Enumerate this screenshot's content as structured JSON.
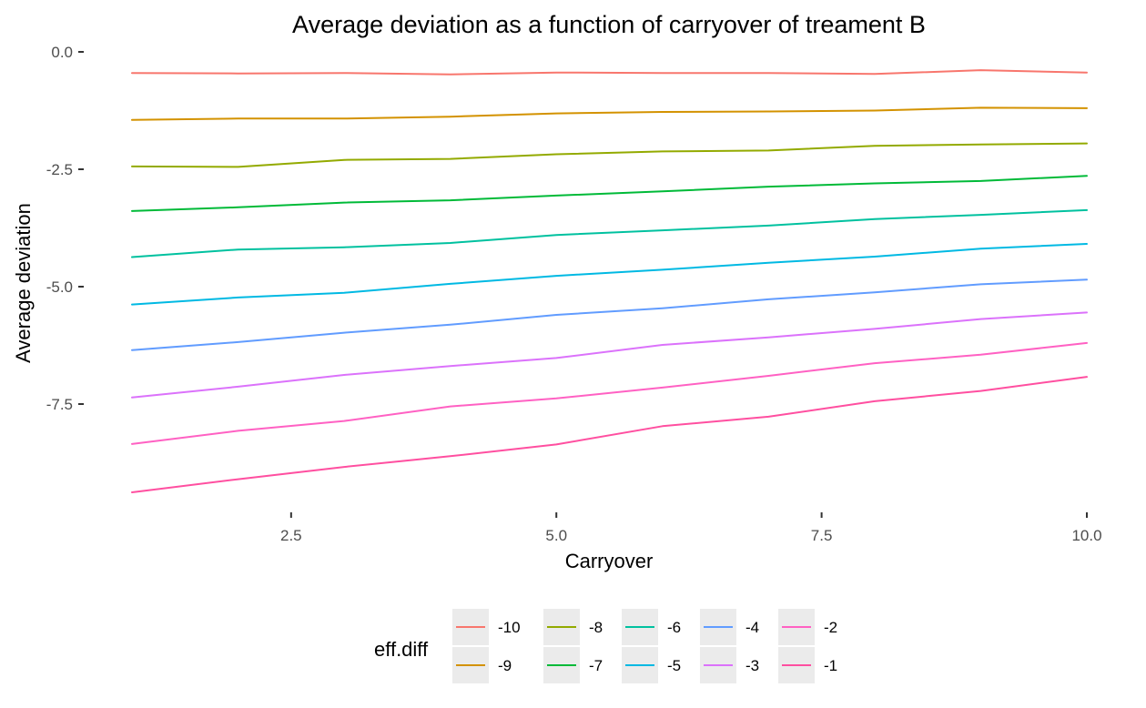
{
  "chart_data": {
    "type": "line",
    "title": "Average deviation as a function of carryover of treament B",
    "xlabel": "Carryover",
    "ylabel": "Average deviation",
    "xlim": [
      1,
      10
    ],
    "ylim": [
      -9.6,
      0.1
    ],
    "x_ticks": [
      {
        "value": 2.5,
        "label": "2.5"
      },
      {
        "value": 5.0,
        "label": "5.0"
      },
      {
        "value": 7.5,
        "label": "7.5"
      },
      {
        "value": 10.0,
        "label": "10.0"
      }
    ],
    "y_ticks": [
      {
        "value": 0.0,
        "label": "0.0"
      },
      {
        "value": -2.5,
        "label": "-2.5"
      },
      {
        "value": -5.0,
        "label": "-5.0"
      },
      {
        "value": -7.5,
        "label": "-7.5"
      }
    ],
    "grid": false,
    "legend": {
      "title": "eff.diff",
      "placement": "bottom"
    },
    "x": [
      1,
      2,
      3,
      4,
      5,
      6,
      7,
      8,
      9,
      10
    ],
    "series": [
      {
        "name": "-10",
        "color": "#F8766D",
        "values": [
          -0.45,
          -0.46,
          -0.45,
          -0.48,
          -0.44,
          -0.45,
          -0.45,
          -0.47,
          -0.39,
          -0.44
        ]
      },
      {
        "name": "-9",
        "color": "#D39200",
        "values": [
          -1.45,
          -1.42,
          -1.42,
          -1.38,
          -1.31,
          -1.28,
          -1.27,
          -1.25,
          -1.19,
          -1.2
        ]
      },
      {
        "name": "-8",
        "color": "#93AA00",
        "values": [
          -2.44,
          -2.45,
          -2.3,
          -2.28,
          -2.18,
          -2.12,
          -2.1,
          -2.0,
          -1.97,
          -1.95
        ]
      },
      {
        "name": "-7",
        "color": "#00BA38",
        "values": [
          -3.39,
          -3.31,
          -3.21,
          -3.16,
          -3.06,
          -2.97,
          -2.87,
          -2.8,
          -2.75,
          -2.64
        ]
      },
      {
        "name": "-6",
        "color": "#00C19F",
        "values": [
          -4.37,
          -4.21,
          -4.16,
          -4.07,
          -3.9,
          -3.8,
          -3.7,
          -3.56,
          -3.47,
          -3.37
        ]
      },
      {
        "name": "-5",
        "color": "#00B9E3",
        "values": [
          -5.38,
          -5.23,
          -5.13,
          -4.94,
          -4.77,
          -4.64,
          -4.49,
          -4.36,
          -4.19,
          -4.09
        ]
      },
      {
        "name": "-4",
        "color": "#619CFF",
        "values": [
          -6.35,
          -6.18,
          -5.98,
          -5.81,
          -5.6,
          -5.46,
          -5.27,
          -5.12,
          -4.95,
          -4.85
        ]
      },
      {
        "name": "-3",
        "color": "#DB72FB",
        "values": [
          -7.36,
          -7.13,
          -6.88,
          -6.69,
          -6.52,
          -6.24,
          -6.08,
          -5.9,
          -5.69,
          -5.55
        ]
      },
      {
        "name": "-2",
        "color": "#FF61C3",
        "values": [
          -8.35,
          -8.07,
          -7.86,
          -7.55,
          -7.38,
          -7.15,
          -6.9,
          -6.63,
          -6.45,
          -6.2
        ]
      }
    ],
    "series_extra": [
      {
        "name": "-1",
        "color": "#FF4FA0",
        "values": [
          -9.38,
          -9.1,
          -8.84,
          -8.61,
          -8.36,
          -7.97,
          -7.77,
          -7.44,
          -7.22,
          -6.92
        ]
      }
    ],
    "legend_order": [
      "-10",
      "-9",
      "-8",
      "-7",
      "-6",
      "-5",
      "-4",
      "-3",
      "-2",
      "-1"
    ]
  }
}
